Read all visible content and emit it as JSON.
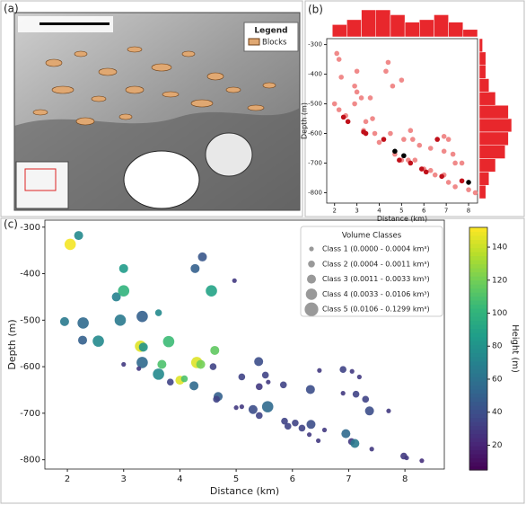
{
  "panel_labels": [
    "(a)",
    "(b)",
    "(c)"
  ],
  "map": {
    "legend_title": "Legend",
    "legend_item": "Blocks"
  },
  "chart_data": [
    {
      "type": "scatter",
      "xlabel": "Distance (km)",
      "ylabel": "Depth (m)",
      "xlim": [
        1.65,
        8.4
      ],
      "ylim": [
        -835,
        -280
      ],
      "xticks": [
        2,
        3,
        4,
        5,
        6,
        7,
        8
      ],
      "yticks": [
        -300,
        -400,
        -500,
        -600,
        -700,
        -800
      ],
      "series": [
        {
          "color": "#f08a8a",
          "x": [
            2.1,
            2.2,
            2.3,
            2.0,
            2.2,
            2.5,
            2.9,
            3.0,
            3.0,
            2.9,
            3.2,
            3.4,
            3.3,
            3.6,
            3.7,
            3.8,
            4.0,
            4.3,
            4.4,
            4.6,
            4.5,
            4.7,
            5.0,
            5.4,
            5.5,
            5.1,
            5.8,
            6.3,
            6.9,
            7.1,
            6.9,
            7.3,
            7.4,
            7.7,
            5.6,
            5.3,
            6.0,
            6.3,
            6.5,
            6.9,
            7.1,
            7.4,
            8.0,
            8.3,
            5.0
          ],
          "values": [
            -330,
            -350,
            -410,
            -500,
            -520,
            -540,
            -440,
            -390,
            -460,
            -500,
            -480,
            -560,
            -590,
            -480,
            -550,
            -600,
            -630,
            -390,
            -360,
            -440,
            -600,
            -670,
            -420,
            -590,
            -620,
            -620,
            -640,
            -650,
            -610,
            -620,
            -660,
            -670,
            -700,
            -700,
            -690,
            -690,
            -720,
            -725,
            -740,
            -740,
            -765,
            -780,
            -790,
            -800,
            -690
          ]
        },
        {
          "color": "#c0101a",
          "x": [
            2.4,
            2.6,
            3.3,
            3.4,
            4.2,
            4.9,
            5.4,
            5.9,
            6.1,
            6.6,
            6.8,
            7.7
          ],
          "values": [
            -545,
            -560,
            -595,
            -600,
            -620,
            -690,
            -700,
            -720,
            -730,
            -620,
            -745,
            -760
          ]
        },
        {
          "color": "#000000",
          "x": [
            4.7,
            5.1,
            8.0
          ],
          "values": [
            -660,
            -675,
            -765
          ]
        }
      ],
      "top_histogram": {
        "color": "#e8272c",
        "bins": [
          1.9,
          2.55,
          3.2,
          3.85,
          4.5,
          5.15,
          5.8,
          6.45,
          7.1,
          7.75,
          8.4
        ],
        "counts": [
          5,
          7,
          11,
          11,
          9,
          6,
          7,
          9,
          6,
          3
        ]
      },
      "right_histogram": {
        "color": "#e8272c",
        "bins": [
          -820,
          -775,
          -730,
          -685,
          -640,
          -595,
          -550,
          -505,
          -460,
          -415,
          -370,
          -325,
          -280
        ],
        "counts": [
          2,
          3,
          5,
          8,
          9,
          10,
          9,
          5,
          3,
          2,
          2,
          1
        ]
      }
    },
    {
      "type": "bubble",
      "xlabel": "Distance (km)",
      "ylabel": "Depth (m)",
      "xlim": [
        1.6,
        8.7
      ],
      "ylim": [
        -820,
        -285
      ],
      "xticks": [
        2,
        3,
        4,
        5,
        6,
        7,
        8
      ],
      "yticks": [
        -300,
        -400,
        -500,
        -600,
        -700,
        -800
      ],
      "colormap": "viridis",
      "x": [
        2.05,
        2.2,
        3.0,
        2.87,
        3.0,
        1.95,
        2.28,
        2.27,
        2.55,
        2.94,
        3.33,
        3.62,
        4.27,
        4.4,
        4.56,
        4.97,
        3.3,
        3.35,
        3.33,
        3.8,
        3.0,
        3.27,
        3.68,
        3.62,
        4.3,
        4.37,
        4.62,
        4.59,
        4.0,
        4.08,
        4.25,
        3.83,
        4.68,
        4.65,
        5.4,
        5.52,
        5.1,
        5.57,
        5.41,
        5.84,
        6.32,
        6.48,
        6.9,
        7.06,
        7.19,
        6.9,
        7.13,
        7.3,
        7.37,
        7.71,
        5.56,
        5.3,
        5.41,
        5.0,
        5.1,
        5.86,
        6.05,
        5.92,
        6.33,
        6.17,
        6.57,
        6.3,
        6.46,
        6.95,
        7.05,
        7.11,
        7.41,
        7.98,
        8.03,
        8.3
      ],
      "values": [
        -337,
        -318,
        -389,
        -450,
        -437,
        -503,
        -506,
        -543,
        -545,
        -500,
        -492,
        -484,
        -389,
        -364,
        -437,
        -415,
        -556,
        -558,
        -591,
        -546,
        -595,
        -604,
        -595,
        -616,
        -591,
        -595,
        -565,
        -600,
        -629,
        -626,
        -641,
        -633,
        -664,
        -670,
        -589,
        -618,
        -622,
        -633,
        -643,
        -639,
        -649,
        -608,
        -606,
        -610,
        -622,
        -657,
        -659,
        -670,
        -695,
        -695,
        -686,
        -692,
        -705,
        -688,
        -686,
        -717,
        -721,
        -728,
        -724,
        -732,
        -736,
        -746,
        -759,
        -744,
        -761,
        -765,
        -777,
        -792,
        -796,
        -802
      ],
      "classes": [
        4,
        3,
        3,
        3,
        4,
        3,
        4,
        3,
        4,
        4,
        4,
        2,
        3,
        3,
        4,
        1,
        4,
        3,
        4,
        4,
        1,
        1,
        3,
        4,
        4,
        3,
        3,
        2,
        3,
        2,
        3,
        2,
        3,
        2,
        3,
        2,
        2,
        1,
        2,
        2,
        3,
        1,
        2,
        1,
        1,
        1,
        2,
        2,
        3,
        1,
        4,
        3,
        2,
        1,
        1,
        2,
        2,
        2,
        3,
        2,
        1,
        1,
        1,
        3,
        2,
        3,
        1,
        2,
        1,
        1
      ],
      "heights": [
        150,
        75,
        85,
        70,
        100,
        65,
        55,
        50,
        75,
        65,
        50,
        75,
        50,
        45,
        90,
        30,
        145,
        80,
        55,
        105,
        30,
        30,
        110,
        75,
        145,
        120,
        115,
        35,
        145,
        110,
        55,
        35,
        50,
        35,
        40,
        35,
        35,
        30,
        30,
        35,
        40,
        30,
        35,
        30,
        30,
        30,
        35,
        35,
        40,
        30,
        55,
        40,
        35,
        30,
        30,
        35,
        35,
        35,
        40,
        35,
        30,
        30,
        30,
        55,
        30,
        65,
        30,
        30,
        30,
        25
      ],
      "colorbar": {
        "label": "Height (m)",
        "lim": [
          5,
          152
        ],
        "ticks": [
          20,
          40,
          60,
          80,
          100,
          120,
          140
        ]
      },
      "legend": {
        "title": "Volume Classes",
        "marker_color": "#999999",
        "entries": [
          "Class 1 (0.0000 - 0.0004 km³)",
          "Class 2 (0.0004 - 0.0011 km³)",
          "Class 3 (0.0011 - 0.0033 km³)",
          "Class 4 (0.0033 - 0.0106 km³)",
          "Class 5 (0.0106 - 0.1299 km³)"
        ]
      }
    }
  ]
}
